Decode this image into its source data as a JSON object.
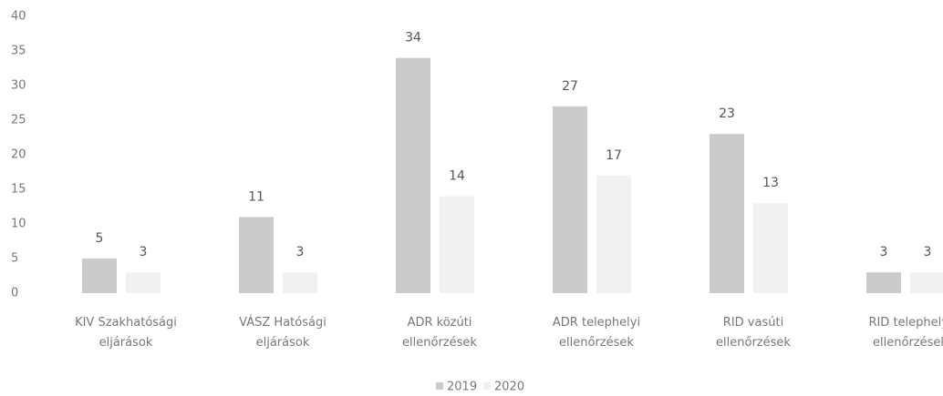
{
  "chart_data": {
    "type": "bar",
    "categories": [
      "KIV Szakhatósági eljárások",
      "VÁSZ Hatósági eljárások",
      "ADR közúti ellenőrzések",
      "ADR telephelyi ellenőrzések",
      "RID vasúti ellenőrzések",
      "RID telephelyi ellenőrzések"
    ],
    "series": [
      {
        "name": "2019",
        "color": "#cbcbcb",
        "values": [
          5,
          11,
          34,
          27,
          23,
          3
        ]
      },
      {
        "name": "2020",
        "color": "#f1f1f1",
        "values": [
          3,
          3,
          14,
          17,
          13,
          3
        ]
      }
    ],
    "ylim": [
      0,
      40
    ],
    "yticks": [
      0,
      5,
      10,
      15,
      20,
      25,
      30,
      35,
      40
    ],
    "grid": false,
    "legend": "bottom"
  }
}
